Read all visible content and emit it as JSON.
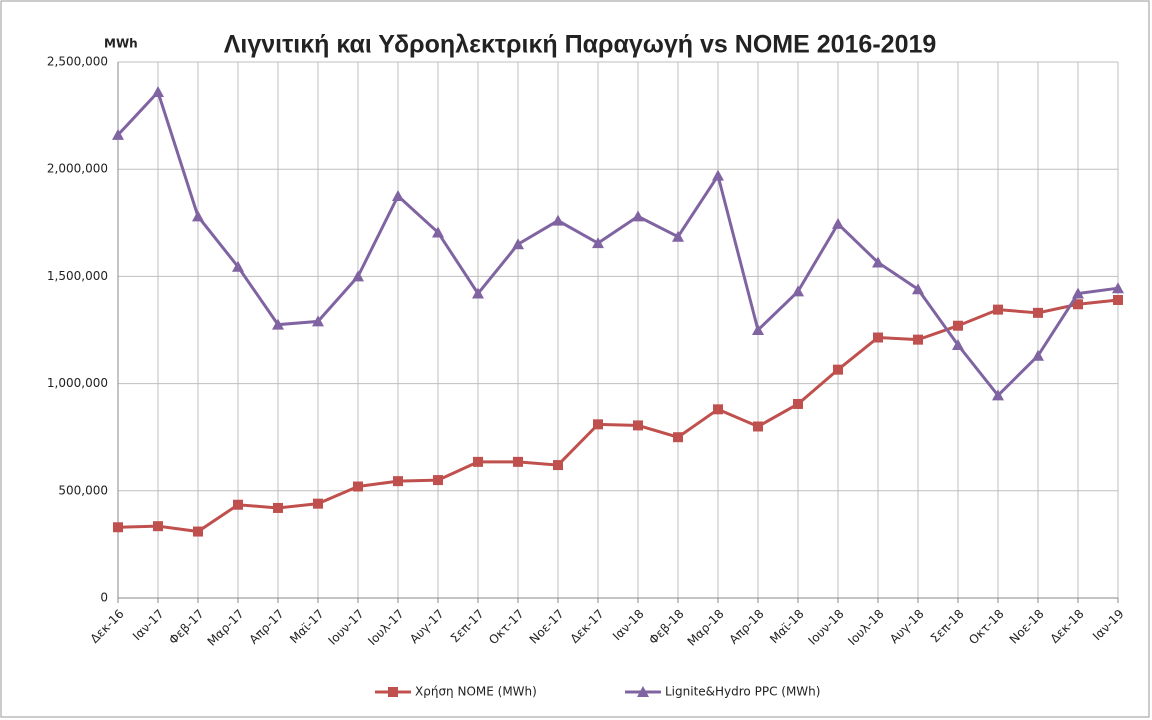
{
  "chart_data": {
    "type": "line",
    "title": "Λιγνιτική και Υδροηλεκτρική Παραγωγή vs NOME 2016-2019",
    "y_unit": "MWh",
    "categories": [
      "Δεκ-16",
      "Ιαν-17",
      "Φεβ-17",
      "Μαρ-17",
      "Απρ-17",
      "Μαϊ-17",
      "Ιουν-17",
      "Ιουλ-17",
      "Αυγ-17",
      "Σεπ-17",
      "Οκτ-17",
      "Νοε-17",
      "Δεκ-17",
      "Ιαν-18",
      "Φεβ-18",
      "Μαρ-18",
      "Απρ-18",
      "Μαϊ-18",
      "Ιουν-18",
      "Ιουλ-18",
      "Αυγ-18",
      "Σεπ-18",
      "Οκτ-18",
      "Νοε-18",
      "Δεκ-18",
      "Ιαν-19"
    ],
    "series": [
      {
        "name": "Χρήση NOME (MWh)",
        "color": "#c0504d",
        "marker": "square",
        "values": [
          330000,
          335000,
          310000,
          435000,
          420000,
          440000,
          520000,
          545000,
          550000,
          635000,
          635000,
          620000,
          810000,
          805000,
          750000,
          880000,
          800000,
          905000,
          1065000,
          1215000,
          1205000,
          1270000,
          1345000,
          1330000,
          1370000,
          1390000
        ]
      },
      {
        "name": "Lignite&Hydro PPC (MWh)",
        "color": "#8064a2",
        "marker": "triangle",
        "values": [
          2160000,
          2360000,
          1780000,
          1545000,
          1275000,
          1290000,
          1500000,
          1875000,
          1705000,
          1420000,
          1650000,
          1760000,
          1655000,
          1780000,
          1685000,
          1970000,
          1250000,
          1430000,
          1745000,
          1565000,
          1440000,
          1180000,
          945000,
          1130000,
          1420000,
          1445000
        ]
      }
    ],
    "ylim": [
      0,
      2500000
    ],
    "yticks": [
      0,
      {
        "value": 500000,
        "label": "500,000"
      },
      {
        "value": 1000000,
        "label": "1,000,000"
      },
      {
        "value": 1500000,
        "label": "1,500,000"
      },
      {
        "value": 2000000,
        "label": "2,000,000"
      },
      {
        "value": 2500000,
        "label": "2,500,000"
      }
    ],
    "grid": true,
    "legend": "bottom"
  }
}
